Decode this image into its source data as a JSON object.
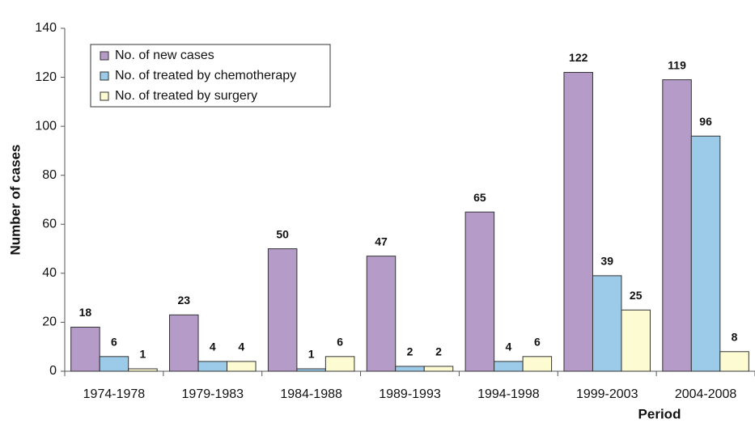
{
  "chart_data": {
    "type": "bar",
    "xlabel": "Period",
    "ylabel": "Number of cases",
    "categories": [
      "1974-1978",
      "1979-1983",
      "1984-1988",
      "1989-1993",
      "1994-1998",
      "1999-2003",
      "2004-2008"
    ],
    "series": [
      {
        "name": "No. of new cases",
        "color": "#b49bc8",
        "values": [
          18,
          23,
          50,
          47,
          65,
          122,
          119
        ]
      },
      {
        "name": "No. of treated by chemotherapy",
        "color": "#9ccbea",
        "values": [
          6,
          4,
          1,
          2,
          4,
          39,
          96
        ]
      },
      {
        "name": "No. of treated by surgery",
        "color": "#fdfbd2",
        "values": [
          1,
          4,
          6,
          2,
          6,
          25,
          8
        ]
      }
    ],
    "ylim": [
      0,
      140
    ],
    "yticks": [
      0,
      20,
      40,
      60,
      80,
      100,
      120,
      140
    ],
    "legend": "upper left",
    "data_labels": true
  }
}
